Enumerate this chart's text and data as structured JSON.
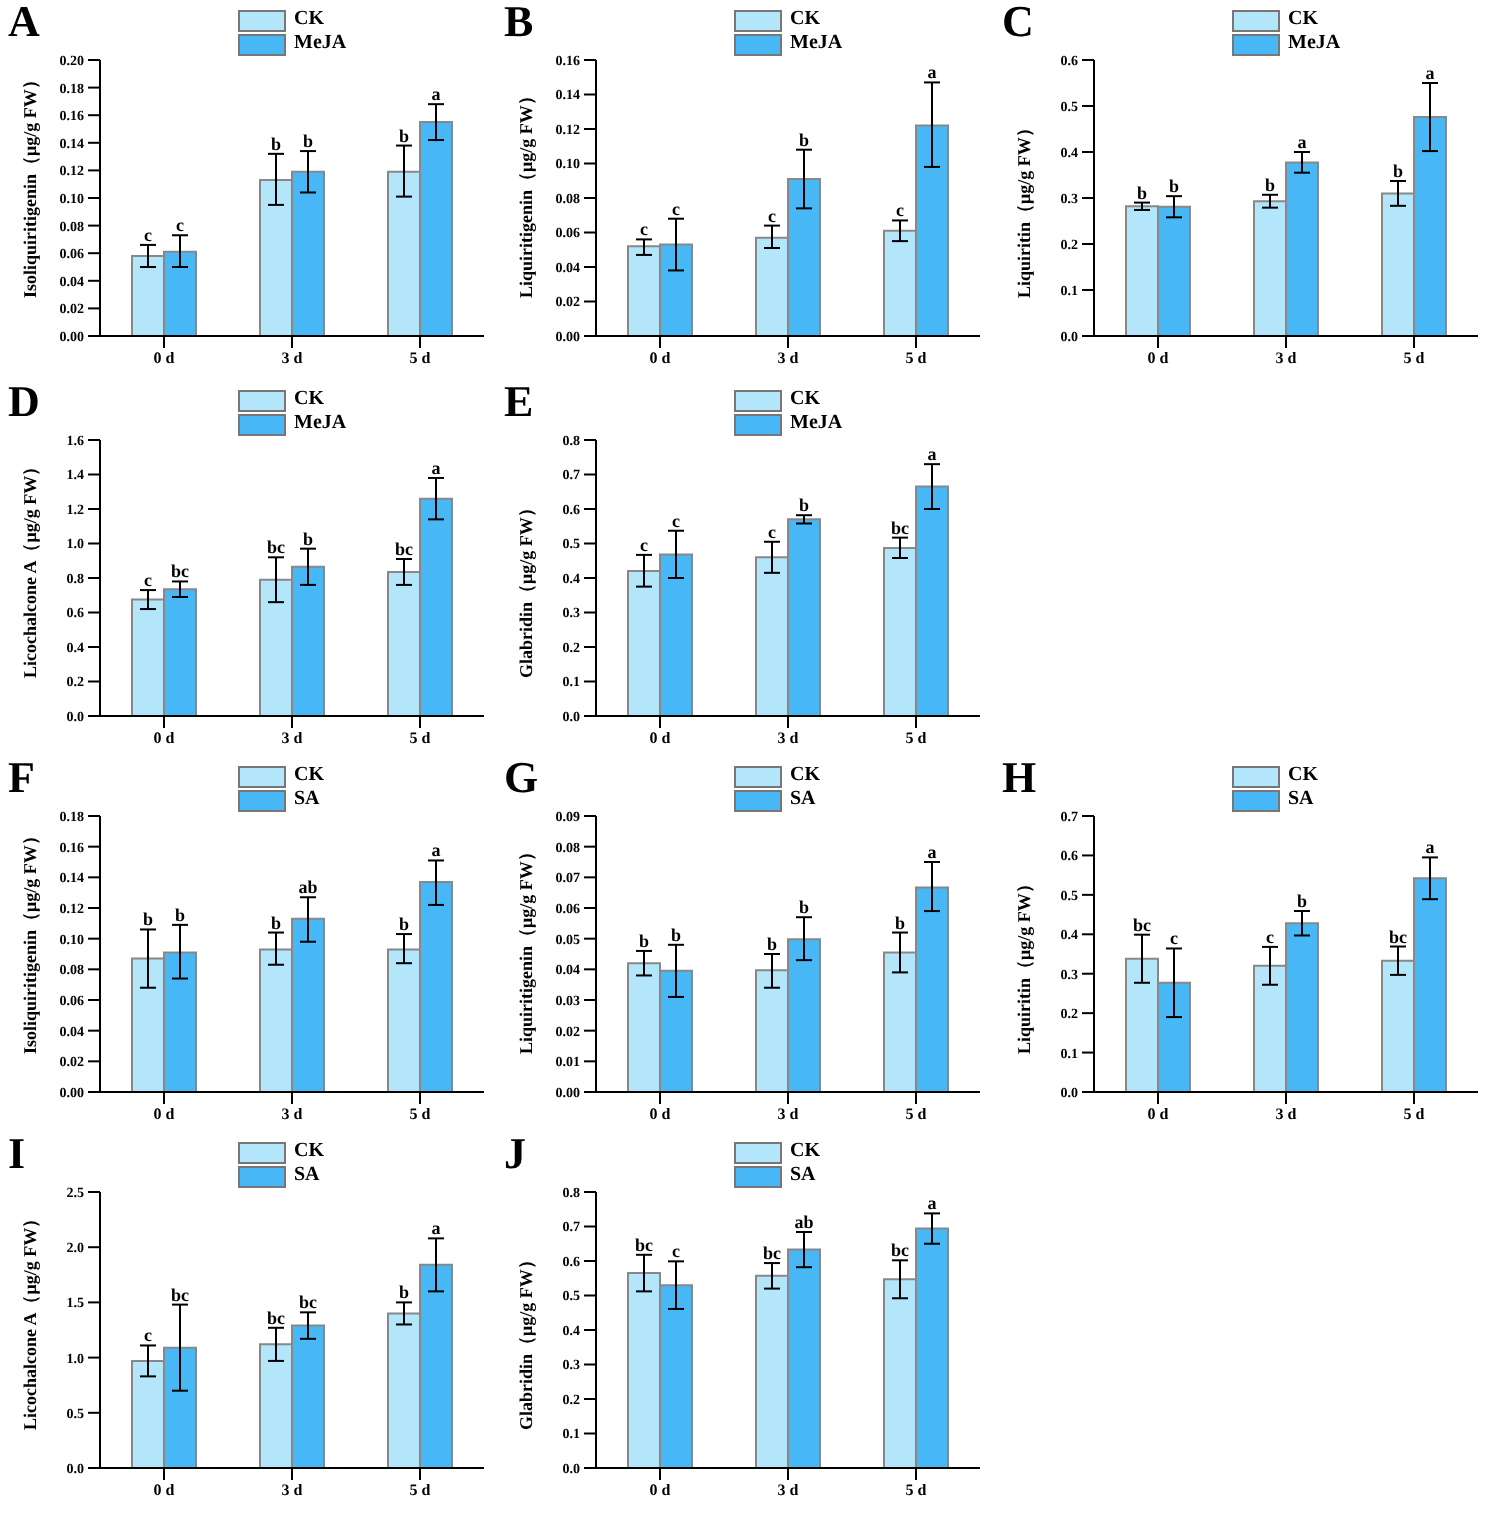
{
  "chart_data": [
    {
      "type": "bar",
      "title": "A",
      "ylabel": "Isoliquiritigenin（μg/g FW）",
      "categories": [
        "0 d",
        "3 d",
        "5 d"
      ],
      "legend": "top",
      "ylim": [
        0,
        0.2
      ],
      "yticks": [
        {
          "value": 0,
          "label": "0.00"
        },
        {
          "value": 0.02,
          "label": "0.02"
        },
        {
          "value": 0.04,
          "label": "0.04"
        },
        {
          "value": 0.06,
          "label": "0.06"
        },
        {
          "value": 0.08,
          "label": "0.08"
        },
        {
          "value": 0.1,
          "label": "0.10"
        },
        {
          "value": 0.12,
          "label": "0.12"
        },
        {
          "value": 0.14,
          "label": "0.14"
        },
        {
          "value": 0.16,
          "label": "0.16"
        },
        {
          "value": 0.18,
          "label": "0.18"
        },
        {
          "value": 0.2,
          "label": "0.20"
        }
      ],
      "series": [
        {
          "name": "CK",
          "color": "#b3e5fb",
          "values": [
            0.058,
            0.113,
            0.119
          ],
          "errors": [
            [
              0.05,
              0.066
            ],
            [
              0.095,
              0.132
            ],
            [
              0.101,
              0.138
            ]
          ]
        },
        {
          "name": "MeJA",
          "color": "#47b8f5",
          "values": [
            0.061,
            0.119,
            0.155
          ],
          "errors": [
            [
              0.05,
              0.073
            ],
            [
              0.104,
              0.134
            ],
            [
              0.142,
              0.168
            ]
          ]
        }
      ],
      "annotations": [
        {
          "text": "c",
          "x": "0 d",
          "y": 0.066
        },
        {
          "text": "c",
          "x": "0 d",
          "y": 0.073
        },
        {
          "text": "b",
          "x": "3 d",
          "y": 0.132
        },
        {
          "text": "b",
          "x": "3 d",
          "y": 0.134
        },
        {
          "text": "b",
          "x": "5 d",
          "y": 0.138
        },
        {
          "text": "a",
          "x": "5 d",
          "y": 0.168
        }
      ]
    },
    {
      "type": "bar",
      "title": "B",
      "ylabel": "Liquiritigenin（μg/g FW）",
      "categories": [
        "0 d",
        "3 d",
        "5 d"
      ],
      "legend": "top",
      "ylim": [
        0,
        0.16
      ],
      "yticks": [
        {
          "value": 0,
          "label": "0.00"
        },
        {
          "value": 0.02,
          "label": "0.02"
        },
        {
          "value": 0.04,
          "label": "0.04"
        },
        {
          "value": 0.06,
          "label": "0.06"
        },
        {
          "value": 0.08,
          "label": "0.08"
        },
        {
          "value": 0.1,
          "label": "0.10"
        },
        {
          "value": 0.12,
          "label": "0.12"
        },
        {
          "value": 0.14,
          "label": "0.14"
        },
        {
          "value": 0.16,
          "label": "0.16"
        }
      ],
      "series": [
        {
          "name": "CK",
          "color": "#b3e5fb",
          "values": [
            0.052,
            0.057,
            0.061
          ],
          "errors": [
            [
              0.047,
              0.056
            ],
            [
              0.051,
              0.064
            ],
            [
              0.055,
              0.067
            ]
          ]
        },
        {
          "name": "MeJA",
          "color": "#47b8f5",
          "values": [
            0.053,
            0.091,
            0.122
          ],
          "errors": [
            [
              0.038,
              0.068
            ],
            [
              0.074,
              0.108
            ],
            [
              0.098,
              0.147
            ]
          ]
        }
      ],
      "annotations": [
        {
          "text": "c",
          "x": "0 d",
          "y": 0.056
        },
        {
          "text": "c",
          "x": "0 d",
          "y": 0.068
        },
        {
          "text": "c",
          "x": "3 d",
          "y": 0.064
        },
        {
          "text": "b",
          "x": "3 d",
          "y": 0.108
        },
        {
          "text": "c",
          "x": "5 d",
          "y": 0.067
        },
        {
          "text": "a",
          "x": "5 d",
          "y": 0.147
        }
      ]
    },
    {
      "type": "bar",
      "title": "C",
      "ylabel": "Liquiritin（μg/g FW）",
      "categories": [
        "0 d",
        "3 d",
        "5 d"
      ],
      "legend": "top",
      "ylim": [
        0,
        0.6
      ],
      "yticks": [
        {
          "value": 0,
          "label": "0.0"
        },
        {
          "value": 0.1,
          "label": "0.1"
        },
        {
          "value": 0.2,
          "label": "0.2"
        },
        {
          "value": 0.3,
          "label": "0.3"
        },
        {
          "value": 0.4,
          "label": "0.4"
        },
        {
          "value": 0.5,
          "label": "0.5"
        },
        {
          "value": 0.6,
          "label": "0.6"
        }
      ],
      "series": [
        {
          "name": "CK",
          "color": "#b3e5fb",
          "values": [
            0.282,
            0.293,
            0.31
          ],
          "errors": [
            [
              0.274,
              0.29
            ],
            [
              0.279,
              0.307
            ],
            [
              0.283,
              0.337
            ]
          ]
        },
        {
          "name": "MeJA",
          "color": "#47b8f5",
          "values": [
            0.281,
            0.377,
            0.476
          ],
          "errors": [
            [
              0.258,
              0.304
            ],
            [
              0.355,
              0.4
            ],
            [
              0.402,
              0.55
            ]
          ]
        }
      ],
      "annotations": [
        {
          "text": "b",
          "x": "0 d",
          "y": 0.29
        },
        {
          "text": "b",
          "x": "0 d",
          "y": 0.304
        },
        {
          "text": "b",
          "x": "3 d",
          "y": 0.307
        },
        {
          "text": "a",
          "x": "3 d",
          "y": 0.4
        },
        {
          "text": "b",
          "x": "5 d",
          "y": 0.337
        },
        {
          "text": "a",
          "x": "5 d",
          "y": 0.55
        }
      ]
    },
    {
      "type": "bar",
      "title": "D",
      "ylabel": "Licochalcone A（μg/g FW）",
      "categories": [
        "0 d",
        "3 d",
        "5 d"
      ],
      "legend": "top",
      "ylim": [
        0,
        1.6
      ],
      "yticks": [
        {
          "value": 0,
          "label": "0.0"
        },
        {
          "value": 0.2,
          "label": "0.2"
        },
        {
          "value": 0.4,
          "label": "0.4"
        },
        {
          "value": 0.6,
          "label": "0.6"
        },
        {
          "value": 0.8,
          "label": "0.8"
        },
        {
          "value": 1,
          "label": "1.0"
        },
        {
          "value": 1.2,
          "label": "1.2"
        },
        {
          "value": 1.4,
          "label": "1.4"
        },
        {
          "value": 1.6,
          "label": "1.6"
        }
      ],
      "series": [
        {
          "name": "CK",
          "color": "#b3e5fb",
          "values": [
            0.675,
            0.79,
            0.835
          ],
          "errors": [
            [
              0.62,
              0.73
            ],
            [
              0.66,
              0.92
            ],
            [
              0.76,
              0.91
            ]
          ]
        },
        {
          "name": "MeJA",
          "color": "#47b8f5",
          "values": [
            0.735,
            0.865,
            1.26
          ],
          "errors": [
            [
              0.69,
              0.78
            ],
            [
              0.76,
              0.97
            ],
            [
              1.14,
              1.38
            ]
          ]
        }
      ],
      "annotations": [
        {
          "text": "c",
          "x": "0 d",
          "y": 0.73
        },
        {
          "text": "bc",
          "x": "0 d",
          "y": 0.78
        },
        {
          "text": "bc",
          "x": "3 d",
          "y": 0.92
        },
        {
          "text": "b",
          "x": "3 d",
          "y": 0.97
        },
        {
          "text": "bc",
          "x": "5 d",
          "y": 0.91
        },
        {
          "text": "a",
          "x": "5 d",
          "y": 1.38
        }
      ]
    },
    {
      "type": "bar",
      "title": "E",
      "ylabel": "Glabridin（μg/g FW）",
      "categories": [
        "0 d",
        "3 d",
        "5 d"
      ],
      "legend": "top",
      "ylim": [
        0,
        0.8
      ],
      "yticks": [
        {
          "value": 0,
          "label": "0.0"
        },
        {
          "value": 0.1,
          "label": "0.1"
        },
        {
          "value": 0.2,
          "label": "0.2"
        },
        {
          "value": 0.3,
          "label": "0.3"
        },
        {
          "value": 0.4,
          "label": "0.4"
        },
        {
          "value": 0.5,
          "label": "0.5"
        },
        {
          "value": 0.6,
          "label": "0.6"
        },
        {
          "value": 0.7,
          "label": "0.7"
        },
        {
          "value": 0.8,
          "label": "0.8"
        }
      ],
      "series": [
        {
          "name": "CK",
          "color": "#b3e5fb",
          "values": [
            0.42,
            0.46,
            0.487
          ],
          "errors": [
            [
              0.375,
              0.467
            ],
            [
              0.415,
              0.505
            ],
            [
              0.458,
              0.517
            ]
          ]
        },
        {
          "name": "MeJA",
          "color": "#47b8f5",
          "values": [
            0.468,
            0.57,
            0.665
          ],
          "errors": [
            [
              0.4,
              0.537
            ],
            [
              0.558,
              0.582
            ],
            [
              0.6,
              0.73
            ]
          ]
        }
      ],
      "annotations": [
        {
          "text": "c",
          "x": "0 d",
          "y": 0.467
        },
        {
          "text": "c",
          "x": "0 d",
          "y": 0.537
        },
        {
          "text": "c",
          "x": "3 d",
          "y": 0.505
        },
        {
          "text": "b",
          "x": "3 d",
          "y": 0.582
        },
        {
          "text": "bc",
          "x": "5 d",
          "y": 0.517
        },
        {
          "text": "a",
          "x": "5 d",
          "y": 0.73
        }
      ]
    },
    {
      "type": "bar",
      "title": "F",
      "ylabel": "Isoliquiritigenin（μg/g FW）",
      "categories": [
        "0 d",
        "3 d",
        "5 d"
      ],
      "legend": "top",
      "ylim": [
        0,
        0.18
      ],
      "yticks": [
        {
          "value": 0,
          "label": "0.00"
        },
        {
          "value": 0.02,
          "label": "0.02"
        },
        {
          "value": 0.04,
          "label": "0.04"
        },
        {
          "value": 0.06,
          "label": "0.06"
        },
        {
          "value": 0.08,
          "label": "0.08"
        },
        {
          "value": 0.1,
          "label": "0.10"
        },
        {
          "value": 0.12,
          "label": "0.12"
        },
        {
          "value": 0.14,
          "label": "0.14"
        },
        {
          "value": 0.16,
          "label": "0.16"
        },
        {
          "value": 0.18,
          "label": "0.18"
        }
      ],
      "series": [
        {
          "name": "CK",
          "color": "#b3e5fb",
          "values": [
            0.087,
            0.093,
            0.093
          ],
          "errors": [
            [
              0.068,
              0.106
            ],
            [
              0.083,
              0.104
            ],
            [
              0.084,
              0.103
            ]
          ]
        },
        {
          "name": "SA",
          "color": "#47b8f5",
          "values": [
            0.091,
            0.113,
            0.137
          ],
          "errors": [
            [
              0.074,
              0.109
            ],
            [
              0.098,
              0.127
            ],
            [
              0.122,
              0.151
            ]
          ]
        }
      ],
      "annotations": [
        {
          "text": "b",
          "x": "0 d",
          "y": 0.106
        },
        {
          "text": "b",
          "x": "0 d",
          "y": 0.109
        },
        {
          "text": "b",
          "x": "3 d",
          "y": 0.104
        },
        {
          "text": "ab",
          "x": "3 d",
          "y": 0.127
        },
        {
          "text": "b",
          "x": "5 d",
          "y": 0.103
        },
        {
          "text": "a",
          "x": "5 d",
          "y": 0.151
        }
      ]
    },
    {
      "type": "bar",
      "title": "G",
      "ylabel": "Liquiritigenin（μg/g FW）",
      "categories": [
        "0 d",
        "3 d",
        "5 d"
      ],
      "legend": "top",
      "ylim": [
        0,
        0.09
      ],
      "yticks": [
        {
          "value": 0,
          "label": "0.00"
        },
        {
          "value": 0.01,
          "label": "0.01"
        },
        {
          "value": 0.02,
          "label": "0.02"
        },
        {
          "value": 0.03,
          "label": "0.03"
        },
        {
          "value": 0.04,
          "label": "0.04"
        },
        {
          "value": 0.05,
          "label": "0.05"
        },
        {
          "value": 0.06,
          "label": "0.06"
        },
        {
          "value": 0.07,
          "label": "0.07"
        },
        {
          "value": 0.08,
          "label": "0.08"
        },
        {
          "value": 0.09,
          "label": "0.09"
        }
      ],
      "series": [
        {
          "name": "CK",
          "color": "#b3e5fb",
          "values": [
            0.042,
            0.0397,
            0.0455
          ],
          "errors": [
            [
              0.038,
              0.046
            ],
            [
              0.034,
              0.045
            ],
            [
              0.039,
              0.052
            ]
          ]
        },
        {
          "name": "SA",
          "color": "#47b8f5",
          "values": [
            0.0395,
            0.0498,
            0.0667
          ],
          "errors": [
            [
              0.031,
              0.048
            ],
            [
              0.043,
              0.057
            ],
            [
              0.059,
              0.075
            ]
          ]
        }
      ],
      "annotations": [
        {
          "text": "b",
          "x": "0 d",
          "y": 0.046
        },
        {
          "text": "b",
          "x": "0 d",
          "y": 0.048
        },
        {
          "text": "b",
          "x": "3 d",
          "y": 0.045
        },
        {
          "text": "b",
          "x": "3 d",
          "y": 0.057
        },
        {
          "text": "b",
          "x": "5 d",
          "y": 0.052
        },
        {
          "text": "a",
          "x": "5 d",
          "y": 0.075
        }
      ]
    },
    {
      "type": "bar",
      "title": "H",
      "ylabel": "Liquiritin（μg/g FW）",
      "categories": [
        "0 d",
        "3 d",
        "5 d"
      ],
      "legend": "top",
      "ylim": [
        0,
        0.7
      ],
      "yticks": [
        {
          "value": 0,
          "label": "0.0"
        },
        {
          "value": 0.1,
          "label": "0.1"
        },
        {
          "value": 0.2,
          "label": "0.2"
        },
        {
          "value": 0.3,
          "label": "0.3"
        },
        {
          "value": 0.4,
          "label": "0.4"
        },
        {
          "value": 0.5,
          "label": "0.5"
        },
        {
          "value": 0.6,
          "label": "0.6"
        },
        {
          "value": 0.7,
          "label": "0.7"
        }
      ],
      "series": [
        {
          "name": "CK",
          "color": "#b3e5fb",
          "values": [
            0.338,
            0.32,
            0.333
          ],
          "errors": [
            [
              0.277,
              0.399
            ],
            [
              0.272,
              0.368
            ],
            [
              0.297,
              0.369
            ]
          ]
        },
        {
          "name": "SA",
          "color": "#47b8f5",
          "values": [
            0.277,
            0.428,
            0.542
          ],
          "errors": [
            [
              0.19,
              0.364
            ],
            [
              0.397,
              0.459
            ],
            [
              0.489,
              0.595
            ]
          ]
        }
      ],
      "annotations": [
        {
          "text": "bc",
          "x": "0 d",
          "y": 0.399
        },
        {
          "text": "c",
          "x": "0 d",
          "y": 0.364
        },
        {
          "text": "c",
          "x": "3 d",
          "y": 0.368
        },
        {
          "text": "b",
          "x": "3 d",
          "y": 0.459
        },
        {
          "text": "bc",
          "x": "5 d",
          "y": 0.369
        },
        {
          "text": "a",
          "x": "5 d",
          "y": 0.595
        }
      ]
    },
    {
      "type": "bar",
      "title": "I",
      "ylabel": "Licochalcone A（μg/g FW）",
      "categories": [
        "0 d",
        "3 d",
        "5 d"
      ],
      "legend": "top",
      "ylim": [
        0,
        2.5
      ],
      "yticks": [
        {
          "value": 0,
          "label": "0.0"
        },
        {
          "value": 0.5,
          "label": "0.5"
        },
        {
          "value": 1,
          "label": "1.0"
        },
        {
          "value": 1.5,
          "label": "1.5"
        },
        {
          "value": 2,
          "label": "2.0"
        },
        {
          "value": 2.5,
          "label": "2.5"
        }
      ],
      "series": [
        {
          "name": "CK",
          "color": "#b3e5fb",
          "values": [
            0.97,
            1.12,
            1.4
          ],
          "errors": [
            [
              0.83,
              1.11
            ],
            [
              0.97,
              1.27
            ],
            [
              1.3,
              1.5
            ]
          ]
        },
        {
          "name": "SA",
          "color": "#47b8f5",
          "values": [
            1.09,
            1.29,
            1.84
          ],
          "errors": [
            [
              0.7,
              1.48
            ],
            [
              1.17,
              1.41
            ],
            [
              1.6,
              2.08
            ]
          ]
        }
      ],
      "annotations": [
        {
          "text": "c",
          "x": "0 d",
          "y": 1.11
        },
        {
          "text": "bc",
          "x": "0 d",
          "y": 1.48
        },
        {
          "text": "bc",
          "x": "3 d",
          "y": 1.27
        },
        {
          "text": "bc",
          "x": "3 d",
          "y": 1.41
        },
        {
          "text": "b",
          "x": "5 d",
          "y": 1.5
        },
        {
          "text": "a",
          "x": "5 d",
          "y": 2.08
        }
      ]
    },
    {
      "type": "bar",
      "title": "J",
      "ylabel": "Glabridin（μg/g FW）",
      "categories": [
        "0 d",
        "3 d",
        "5 d"
      ],
      "legend": "top",
      "ylim": [
        0,
        0.8
      ],
      "yticks": [
        {
          "value": 0,
          "label": "0.0"
        },
        {
          "value": 0.1,
          "label": "0.1"
        },
        {
          "value": 0.2,
          "label": "0.2"
        },
        {
          "value": 0.3,
          "label": "0.3"
        },
        {
          "value": 0.4,
          "label": "0.4"
        },
        {
          "value": 0.5,
          "label": "0.5"
        },
        {
          "value": 0.6,
          "label": "0.6"
        },
        {
          "value": 0.7,
          "label": "0.7"
        },
        {
          "value": 0.8,
          "label": "0.8"
        }
      ],
      "series": [
        {
          "name": "CK",
          "color": "#b3e5fb",
          "values": [
            0.565,
            0.557,
            0.547
          ],
          "errors": [
            [
              0.512,
              0.618
            ],
            [
              0.52,
              0.594
            ],
            [
              0.492,
              0.602
            ]
          ]
        },
        {
          "name": "SA",
          "color": "#47b8f5",
          "values": [
            0.53,
            0.633,
            0.694
          ],
          "errors": [
            [
              0.461,
              0.599
            ],
            [
              0.582,
              0.684
            ],
            [
              0.65,
              0.738
            ]
          ]
        }
      ],
      "annotations": [
        {
          "text": "bc",
          "x": "0 d",
          "y": 0.618
        },
        {
          "text": "c",
          "x": "0 d",
          "y": 0.599
        },
        {
          "text": "bc",
          "x": "3 d",
          "y": 0.594
        },
        {
          "text": "ab",
          "x": "3 d",
          "y": 0.684
        },
        {
          "text": "bc",
          "x": "5 d",
          "y": 0.602
        },
        {
          "text": "a",
          "x": "5 d",
          "y": 0.738
        }
      ]
    }
  ]
}
